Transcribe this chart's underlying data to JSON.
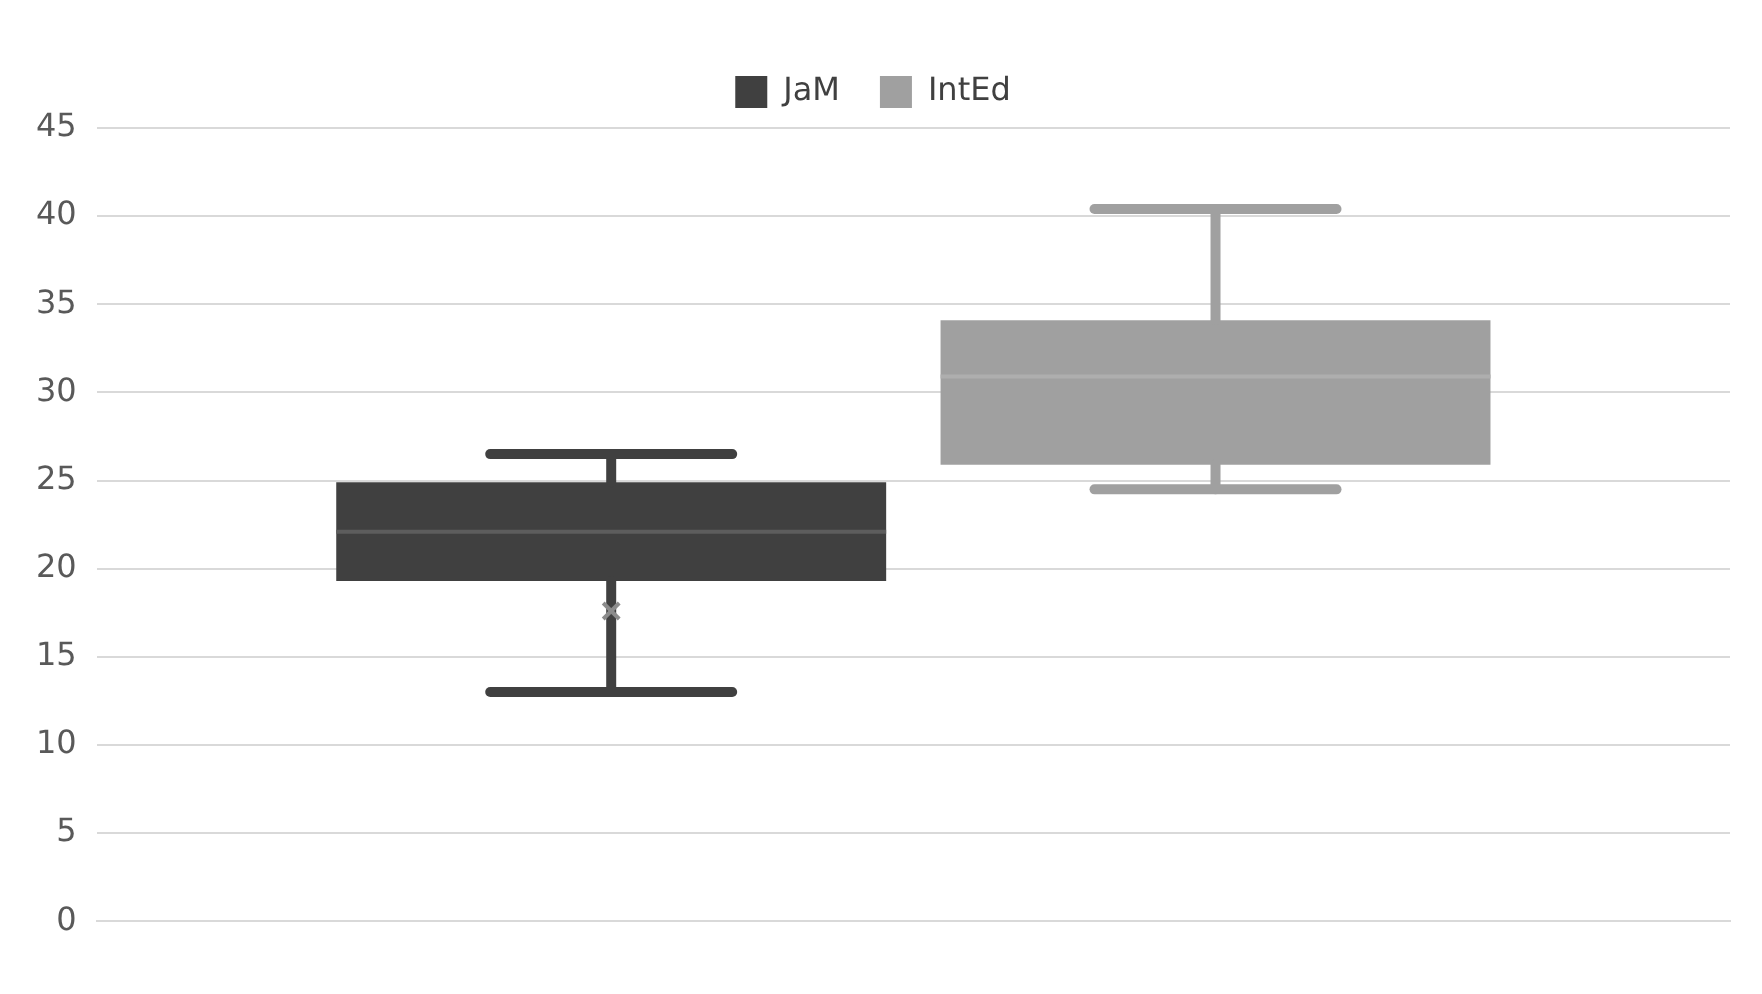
{
  "chart_data": {
    "type": "box",
    "categories": [
      null
    ],
    "series": [
      {
        "name": "JaM",
        "color": "#404040",
        "boxes": [
          {
            "low": 13,
            "q1": 19.3,
            "median": 22.1,
            "q3": 24.9,
            "high": 26.5,
            "mean": 17.6
          }
        ]
      },
      {
        "name": "IntEd",
        "color": "#a0a0a0",
        "boxes": [
          {
            "low": 24.5,
            "q1": 25.9,
            "median": 30.9,
            "q3": 34.1,
            "high": 40.4
          }
        ]
      }
    ],
    "ylim": [
      0,
      45
    ],
    "yticks": [
      0,
      5,
      10,
      15,
      20,
      25,
      30,
      35,
      40,
      45
    ],
    "grid": "y",
    "legend": "top"
  }
}
